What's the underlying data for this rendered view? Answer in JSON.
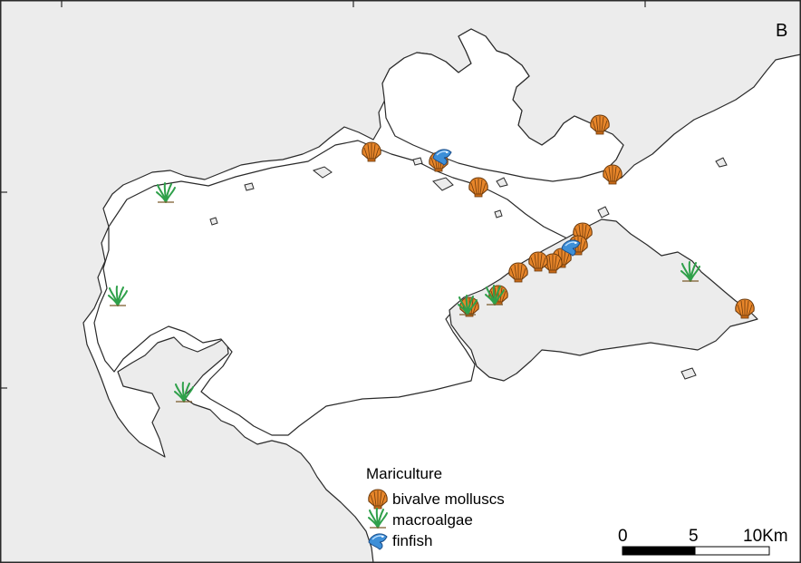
{
  "map": {
    "panel_label": "B",
    "legend": {
      "title": "Mariculture",
      "items": [
        {
          "key": "bivalve",
          "label": "bivalve molluscs",
          "icon": "shell-icon",
          "color": "#e8862a"
        },
        {
          "key": "macroalgae",
          "label": "macroalgae",
          "icon": "seaweed-icon",
          "color": "#2fa04a"
        },
        {
          "key": "finfish",
          "label": "finfish",
          "icon": "fish-icon",
          "color": "#3d8fd8"
        }
      ]
    },
    "scale_bar": {
      "labels": [
        "0",
        "5",
        "10Km"
      ]
    },
    "colors": {
      "land": "#ececec",
      "water": "#ffffff",
      "coastline": "#2a2a2a"
    }
  }
}
